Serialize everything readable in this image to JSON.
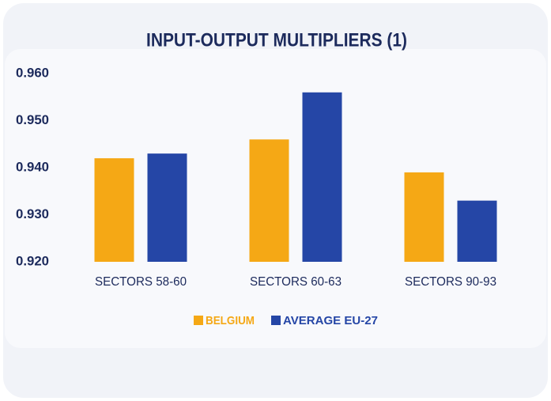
{
  "chart_data": {
    "type": "bar",
    "title": "INPUT-OUTPUT MULTIPLIERS (1)",
    "categories": [
      "SECTORS 58-60",
      "SECTORS 60-63",
      "SECTORS 90-93"
    ],
    "series": [
      {
        "name": "BELGIUM",
        "color": "#f5a815",
        "values": [
          0.942,
          0.946,
          0.939
        ]
      },
      {
        "name": "AVERAGE EU-27",
        "color": "#2546a6",
        "values": [
          0.943,
          0.956,
          0.933
        ]
      }
    ],
    "ylim": [
      0.92,
      0.96
    ],
    "yticks": [
      {
        "value": 0.92,
        "label": "0.920"
      },
      {
        "value": 0.93,
        "label": "0.930"
      },
      {
        "value": 0.94,
        "label": "0.940"
      },
      {
        "value": 0.95,
        "label": "0.950"
      },
      {
        "value": 0.96,
        "label": "0.960"
      }
    ],
    "grid": false,
    "legend": "bottom"
  }
}
